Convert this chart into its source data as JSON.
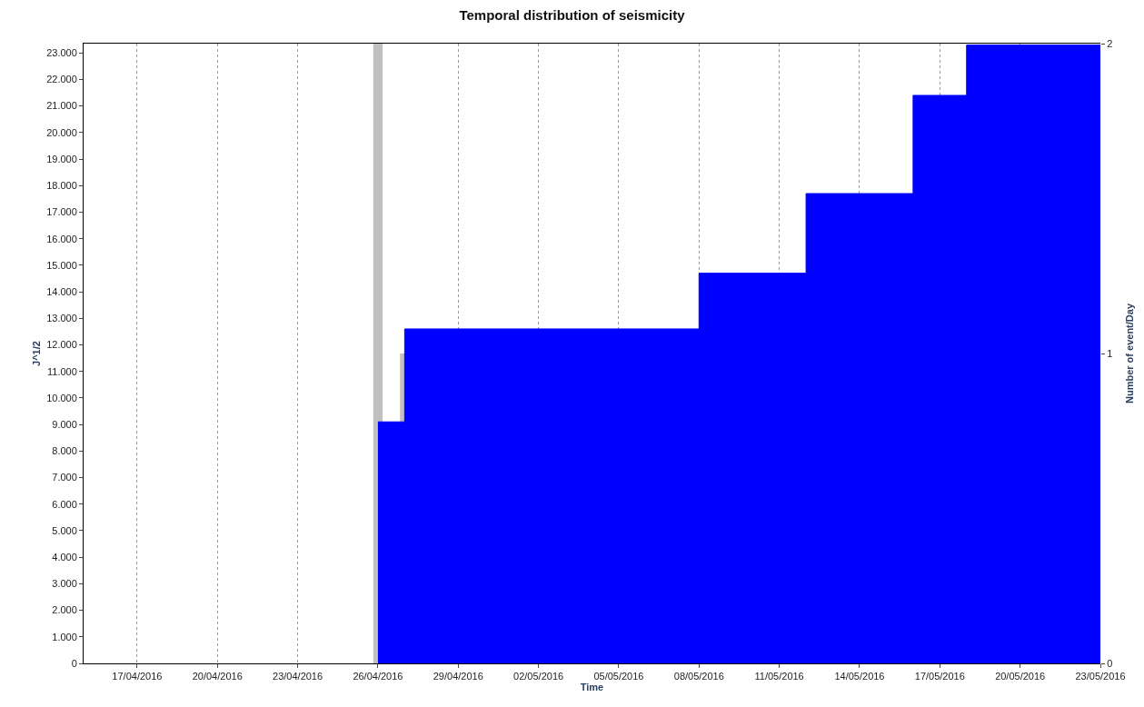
{
  "chart_data": {
    "type": "area",
    "title": "Temporal distribution of seismicity",
    "xlabel": "Time",
    "ylabel": "J^1/2",
    "y2label": "Number of event/Day",
    "series": [
      {
        "type": "bar",
        "axis": "y2",
        "color": "#c0c0c0",
        "x": [
          "2016-04-26",
          "2016-04-27"
        ],
        "values": [
          2,
          1
        ]
      },
      {
        "color": "#0000ff",
        "x": [
          "2016-04-26",
          "2016-04-27",
          "2016-04-27",
          "2016-05-08",
          "2016-05-08",
          "2016-05-12",
          "2016-05-12",
          "2016-05-16",
          "2016-05-16",
          "2016-05-18",
          "2016-05-18",
          "2016-05-23"
        ],
        "values": [
          9100,
          9100,
          12600,
          12600,
          14700,
          14700,
          17700,
          17700,
          21400,
          21400,
          23300,
          23300
        ]
      }
    ],
    "xlim": [
      "2016-04-15",
      "2016-05-23"
    ],
    "xticks": [
      {
        "value": "2016-04-17",
        "label": "17/04/2016"
      },
      {
        "value": "2016-04-20",
        "label": "20/04/2016"
      },
      {
        "value": "2016-04-23",
        "label": "23/04/2016"
      },
      {
        "value": "2016-04-26",
        "label": "26/04/2016"
      },
      {
        "value": "2016-04-29",
        "label": "29/04/2016"
      },
      {
        "value": "2016-05-02",
        "label": "02/05/2016"
      },
      {
        "value": "2016-05-05",
        "label": "05/05/2016"
      },
      {
        "value": "2016-05-08",
        "label": "08/05/2016"
      },
      {
        "value": "2016-05-11",
        "label": "11/05/2016"
      },
      {
        "value": "2016-05-14",
        "label": "14/05/2016"
      },
      {
        "value": "2016-05-17",
        "label": "17/05/2016"
      },
      {
        "value": "2016-05-20",
        "label": "20/05/2016"
      },
      {
        "value": "2016-05-23",
        "label": "23/05/2016"
      }
    ],
    "ylim": [
      0,
      23350
    ],
    "yticks": [
      0,
      {
        "value": 1000,
        "label": "1.000"
      },
      {
        "value": 2000,
        "label": "2.000"
      },
      {
        "value": 3000,
        "label": "3.000"
      },
      {
        "value": 4000,
        "label": "4.000"
      },
      {
        "value": 5000,
        "label": "5.000"
      },
      {
        "value": 6000,
        "label": "6.000"
      },
      {
        "value": 7000,
        "label": "7.000"
      },
      {
        "value": 8000,
        "label": "8.000"
      },
      {
        "value": 9000,
        "label": "9.000"
      },
      {
        "value": 10000,
        "label": "10.000"
      },
      {
        "value": 11000,
        "label": "11.000"
      },
      {
        "value": 12000,
        "label": "12.000"
      },
      {
        "value": 13000,
        "label": "13.000"
      },
      {
        "value": 14000,
        "label": "14.000"
      },
      {
        "value": 15000,
        "label": "15.000"
      },
      {
        "value": 16000,
        "label": "16.000"
      },
      {
        "value": 17000,
        "label": "17.000"
      },
      {
        "value": 18000,
        "label": "18.000"
      },
      {
        "value": 19000,
        "label": "19.000"
      },
      {
        "value": 20000,
        "label": "20.000"
      },
      {
        "value": 21000,
        "label": "21.000"
      },
      {
        "value": 22000,
        "label": "22.000"
      },
      {
        "value": 23000,
        "label": "23.000"
      }
    ],
    "y2lim": [
      0,
      2
    ],
    "y2ticks": [
      0,
      1,
      2
    ],
    "grid": "x",
    "line_style": "dotted"
  }
}
